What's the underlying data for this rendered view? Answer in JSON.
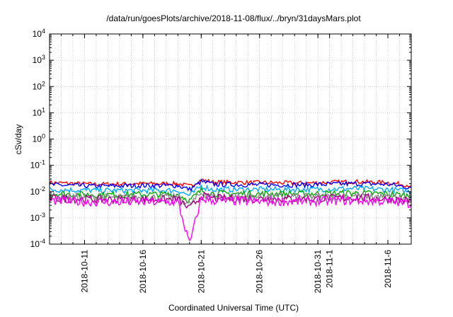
{
  "chart_data": {
    "type": "line",
    "title": "/data/run/goesPlots/archive/2018-11-08/flux/../bryn/31daysMars.plot",
    "xlabel": "Coordinated Universal Time (UTC)",
    "ylabel": "cSv/day",
    "yscale": "log",
    "ylim": [
      0.0001,
      10000
    ],
    "xlim": [
      "2018-10-08",
      "2018-11-08"
    ],
    "y_ticks": [
      {
        "value": 0.0001,
        "base": "10",
        "exp": "-4"
      },
      {
        "value": 0.001,
        "base": "10",
        "exp": "-3"
      },
      {
        "value": 0.01,
        "base": "10",
        "exp": "-2"
      },
      {
        "value": 0.1,
        "base": "10",
        "exp": "-1"
      },
      {
        "value": 1,
        "base": "10",
        "exp": "0"
      },
      {
        "value": 10,
        "base": "10",
        "exp": "1"
      },
      {
        "value": 100,
        "base": "10",
        "exp": "2"
      },
      {
        "value": 1000,
        "base": "10",
        "exp": "3"
      },
      {
        "value": 10000,
        "base": "10",
        "exp": "4"
      }
    ],
    "x_ticks": [
      {
        "date": "2018-10-11",
        "label": "2018-10-11"
      },
      {
        "date": "2018-10-16",
        "label": "2018-10-16"
      },
      {
        "date": "2018-10-21",
        "label": "2018-10-21"
      },
      {
        "date": "2018-10-26",
        "label": "2018-10-26"
      },
      {
        "date": "2018-10-31",
        "label": "2018-10-31"
      },
      {
        "date": "2018-11-01",
        "label": "2018-11-1"
      },
      {
        "date": "2018-11-06",
        "label": "2018-11-6"
      }
    ],
    "grid": true,
    "series_colors": [
      "#ff0000",
      "#0000ff",
      "#00aaff",
      "#00aa00",
      "#888888",
      "#aa0088",
      "#ff00ff"
    ],
    "series": [
      {
        "color": "#ff0000",
        "x": [
          "2018-10-08",
          "2018-10-12",
          "2018-10-16",
          "2018-10-19",
          "2018-10-20",
          "2018-10-21",
          "2018-10-22",
          "2018-10-26",
          "2018-10-30",
          "2018-11-03",
          "2018-11-06",
          "2018-11-08"
        ],
        "values": [
          0.022,
          0.019,
          0.02,
          0.02,
          0.016,
          0.028,
          0.023,
          0.022,
          0.021,
          0.024,
          0.022,
          0.017
        ]
      },
      {
        "color": "#0000ff",
        "x": [
          "2018-10-08",
          "2018-10-12",
          "2018-10-16",
          "2018-10-19",
          "2018-10-20",
          "2018-10-21",
          "2018-10-22",
          "2018-10-26",
          "2018-10-30",
          "2018-11-03",
          "2018-11-06",
          "2018-11-08"
        ],
        "values": [
          0.018,
          0.016,
          0.017,
          0.017,
          0.012,
          0.024,
          0.019,
          0.018,
          0.018,
          0.02,
          0.019,
          0.014
        ]
      },
      {
        "color": "#00aaff",
        "x": [
          "2018-10-08",
          "2018-10-12",
          "2018-10-16",
          "2018-10-19",
          "2018-10-20",
          "2018-10-21",
          "2018-10-22",
          "2018-10-26",
          "2018-10-30",
          "2018-11-03",
          "2018-11-06",
          "2018-11-08"
        ],
        "values": [
          0.012,
          0.011,
          0.011,
          0.011,
          0.007,
          0.016,
          0.012,
          0.012,
          0.012,
          0.013,
          0.012,
          0.01
        ]
      },
      {
        "color": "#00aa00",
        "x": [
          "2018-10-08",
          "2018-10-12",
          "2018-10-16",
          "2018-10-19",
          "2018-10-20",
          "2018-10-21",
          "2018-10-22",
          "2018-10-26",
          "2018-10-30",
          "2018-11-03",
          "2018-11-06",
          "2018-11-08"
        ],
        "values": [
          0.0085,
          0.0075,
          0.0078,
          0.0078,
          0.0045,
          0.011,
          0.0085,
          0.0082,
          0.0082,
          0.0088,
          0.0082,
          0.0068
        ]
      },
      {
        "color": "#888888",
        "x": [
          "2018-10-08",
          "2018-10-12",
          "2018-10-16",
          "2018-10-19",
          "2018-10-20",
          "2018-10-21",
          "2018-10-22",
          "2018-10-26",
          "2018-10-30",
          "2018-11-03",
          "2018-11-06",
          "2018-11-08"
        ],
        "values": [
          0.0065,
          0.006,
          0.006,
          0.006,
          0.0032,
          0.0085,
          0.0065,
          0.0063,
          0.0063,
          0.0068,
          0.0063,
          0.0052
        ]
      },
      {
        "color": "#aa0088",
        "x": [
          "2018-10-08",
          "2018-10-12",
          "2018-10-16",
          "2018-10-19",
          "2018-10-20",
          "2018-10-21",
          "2018-10-22",
          "2018-10-26",
          "2018-10-30",
          "2018-11-03",
          "2018-11-06",
          "2018-11-08"
        ],
        "values": [
          0.0055,
          0.005,
          0.005,
          0.005,
          0.0022,
          0.007,
          0.0055,
          0.0053,
          0.0053,
          0.0058,
          0.0053,
          0.0043
        ]
      },
      {
        "color": "#ff00ff",
        "x": [
          "2018-10-08",
          "2018-10-12",
          "2018-10-16",
          "2018-10-19",
          "2018-10-20",
          "2018-10-21",
          "2018-10-22",
          "2018-10-26",
          "2018-10-30",
          "2018-11-03",
          "2018-11-06",
          "2018-11-08"
        ],
        "values": [
          0.0045,
          0.004,
          0.004,
          0.004,
          0.0001,
          0.0055,
          0.0045,
          0.0042,
          0.0042,
          0.0046,
          0.0042,
          0.0034
        ]
      }
    ]
  }
}
